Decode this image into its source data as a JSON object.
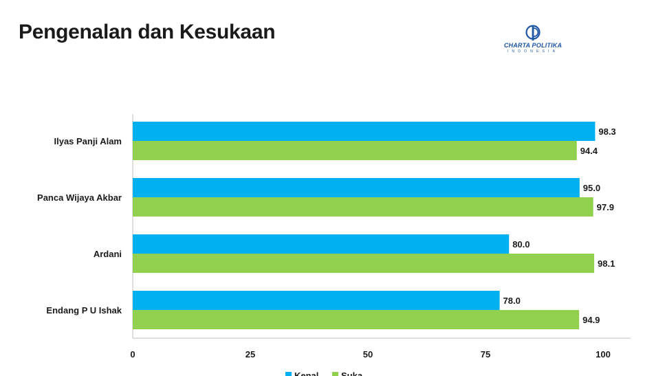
{
  "page": {
    "title": "Pengenalan dan Kesukaan"
  },
  "logo": {
    "name": "CHARTA POLITIKA",
    "subtitle": "INDONESIA",
    "color": "#1f56a6"
  },
  "chart_data": {
    "type": "bar",
    "orientation": "horizontal",
    "title": "",
    "xlabel": "",
    "ylabel": "",
    "categories": [
      "Ilyas Panji Alam",
      "Panca Wijaya Akbar",
      "Ardani",
      "Endang P U Ishak"
    ],
    "series": [
      {
        "name": "Kenal",
        "color": "#00b0f0",
        "values": [
          98.3,
          95.0,
          80.0,
          78.0
        ]
      },
      {
        "name": "Suka",
        "color": "#92d050",
        "values": [
          94.4,
          97.9,
          98.1,
          94.9
        ]
      }
    ],
    "value_labels": [
      [
        "98.3",
        "95.0",
        "80.0",
        "78.0"
      ],
      [
        "94.4",
        "97.9",
        "98.1",
        "94.9"
      ]
    ],
    "xlim": [
      0,
      100
    ],
    "xticks": [
      0,
      25,
      50,
      75,
      100
    ],
    "xtick_labels": [
      "0",
      "25",
      "50",
      "75",
      "100"
    ],
    "grid": false,
    "legend_position": "bottom"
  }
}
